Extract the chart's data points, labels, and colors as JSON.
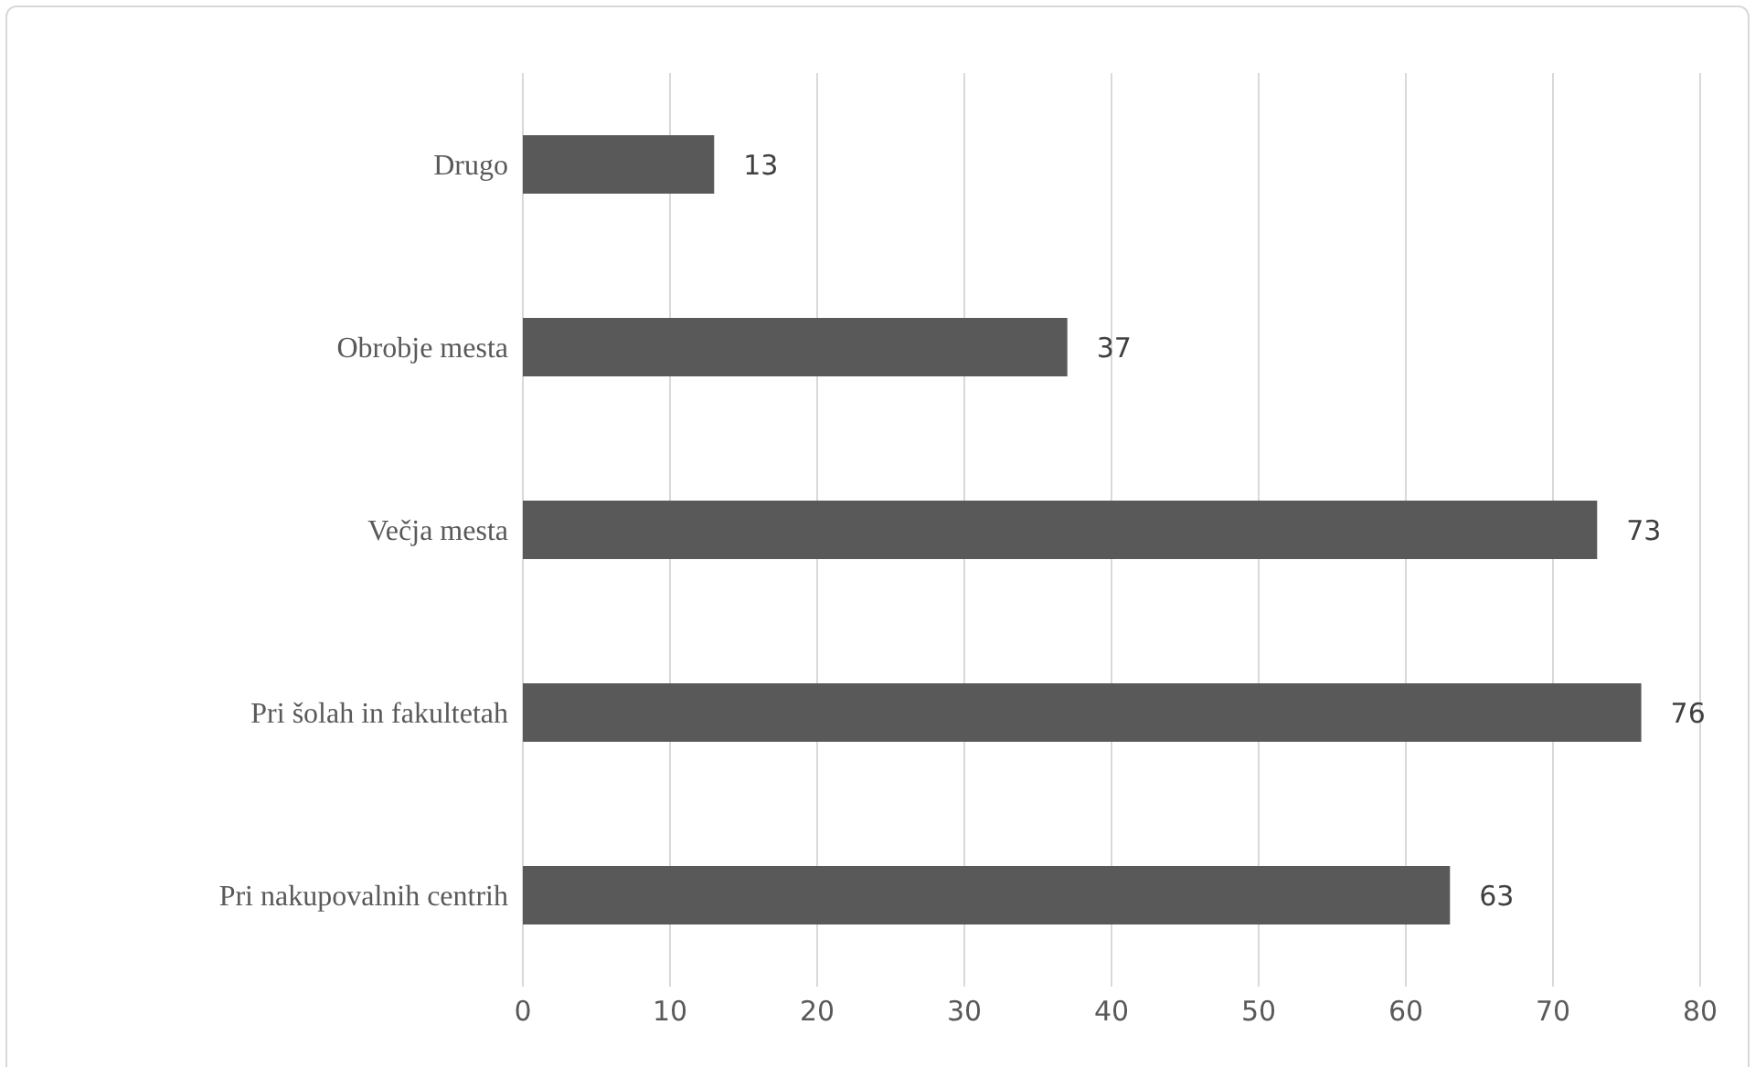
{
  "chart_data": {
    "type": "bar",
    "orientation": "horizontal",
    "categories": [
      "Drugo",
      "Obrobje mesta",
      "Večja mesta",
      "Pri šolah in fakultetah",
      "Pri nakupovalnih centrih"
    ],
    "values": [
      13,
      37,
      73,
      76,
      63
    ],
    "color": "#595959",
    "xlim": [
      0,
      80
    ],
    "xticks": [
      0,
      10,
      20,
      30,
      40,
      50,
      60,
      70,
      80
    ],
    "grid": "x",
    "data_labels": true
  }
}
